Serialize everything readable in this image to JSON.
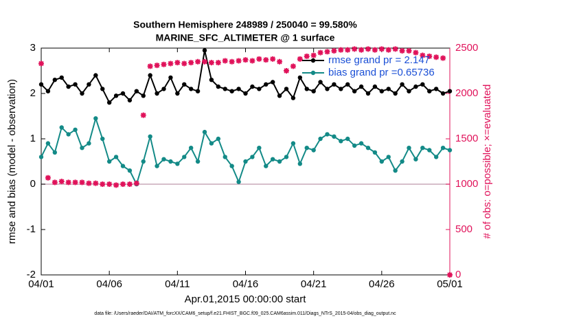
{
  "chart_data": {
    "type": "line",
    "title": "Southern Hemisphere 248989 / 250040 = 99.580%",
    "subtitle": "MARINE_SFC_ALTIMETER @ 1 surface",
    "x_label": "Apr.01,2015 00:00:00 start",
    "y_label": "rmse and bias (model - observation)",
    "y2_label": "# of obs: o=possible; ×=evaluated",
    "footnote": "data file: /Users/raeder/DAI/ATM_forcXX/CAM6_setup/f.e21.FHIST_BGC.f09_025.CAM6assim.011/Diags_NTrS_2015-04/obs_diag_output.nc",
    "legend": "upper right",
    "zero_line": true,
    "xlim": [
      0,
      30
    ],
    "ylim": [
      -2,
      3
    ],
    "y2lim": [
      0,
      2500
    ],
    "xticks": [
      {
        "value": 0,
        "label": "04/01"
      },
      {
        "value": 5,
        "label": "04/06"
      },
      {
        "value": 10,
        "label": "04/11"
      },
      {
        "value": 15,
        "label": "04/16"
      },
      {
        "value": 20,
        "label": "04/21"
      },
      {
        "value": 25,
        "label": "04/26"
      },
      {
        "value": 30,
        "label": "05/01"
      }
    ],
    "yticks": [
      -2,
      -1,
      0,
      1,
      2,
      3
    ],
    "y2ticks": [
      0,
      500,
      1000,
      1500,
      2000,
      2500
    ],
    "x": [
      0,
      0.5,
      1,
      1.5,
      2,
      2.5,
      3,
      3.5,
      4,
      4.5,
      5,
      5.5,
      6,
      6.5,
      7,
      7.5,
      8,
      8.5,
      9,
      9.5,
      10,
      10.5,
      11,
      11.5,
      12,
      12.5,
      13,
      13.5,
      14,
      14.5,
      15,
      15.5,
      16,
      16.5,
      17,
      17.5,
      18,
      18.5,
      19,
      19.5,
      20,
      20.5,
      21,
      21.5,
      22,
      22.5,
      23,
      23.5,
      24,
      24.5,
      25,
      25.5,
      26,
      26.5,
      27,
      27.5,
      28,
      28.5,
      29,
      29.5,
      30
    ],
    "series": [
      {
        "name": "rmse grand pr = 2.147",
        "color": "#000000",
        "marker": "dot",
        "line": true,
        "values": [
          2.2,
          2.05,
          2.3,
          2.35,
          2.15,
          2.2,
          2.0,
          2.2,
          2.4,
          2.1,
          1.8,
          1.95,
          2.0,
          1.85,
          2.05,
          1.95,
          2.4,
          2.0,
          2.1,
          2.35,
          2.0,
          2.2,
          2.1,
          2.05,
          2.95,
          2.3,
          2.15,
          2.1,
          2.05,
          2.1,
          2.0,
          2.15,
          2.1,
          2.2,
          2.25,
          1.95,
          2.1,
          1.9,
          2.35,
          2.1,
          2.05,
          2.25,
          2.1,
          2.2,
          2.1,
          2.2,
          2.05,
          2.15,
          2.0,
          2.15,
          2.05,
          2.1,
          2.0,
          2.2,
          2.05,
          2.15,
          2.2,
          2.05,
          2.1,
          2.0,
          2.05
        ]
      },
      {
        "name": "bias grand pr =0.65736",
        "color": "#138a87",
        "marker": "dot",
        "line": true,
        "values": [
          0.6,
          0.9,
          0.7,
          1.25,
          1.1,
          1.2,
          0.8,
          0.9,
          1.45,
          1.0,
          0.5,
          0.6,
          0.4,
          0.3,
          0.0,
          0.5,
          1.05,
          0.4,
          0.55,
          0.5,
          0.45,
          0.6,
          0.8,
          0.5,
          1.15,
          0.9,
          1.0,
          0.6,
          0.4,
          0.05,
          0.5,
          0.6,
          0.8,
          0.4,
          0.55,
          0.5,
          0.6,
          0.9,
          0.45,
          0.8,
          0.75,
          1.0,
          1.1,
          1.05,
          0.95,
          1.0,
          0.85,
          0.9,
          0.8,
          0.7,
          0.5,
          0.6,
          0.3,
          0.5,
          0.8,
          0.55,
          0.8,
          0.75,
          0.6,
          0.8,
          0.75
        ]
      },
      {
        "color": "#e0125a",
        "marker": "star",
        "line": false,
        "axis": "y2",
        "values": [
          2330,
          1070,
          1020,
          1030,
          1020,
          1020,
          1020,
          1010,
          1010,
          1000,
          1000,
          990,
          1000,
          1000,
          1010,
          1760,
          2300,
          2310,
          2320,
          2330,
          2340,
          2330,
          2340,
          2350,
          2350,
          2340,
          2340,
          2360,
          2350,
          2360,
          2370,
          2360,
          2380,
          2370,
          2380,
          2350,
          2250,
          2300,
          2380,
          2410,
          2420,
          2450,
          2460,
          2470,
          2480,
          2480,
          2490,
          2480,
          2490,
          2480,
          2490,
          2480,
          2490,
          2470,
          2470,
          2450,
          2420,
          2410,
          2400,
          2390,
          0
        ]
      }
    ]
  }
}
